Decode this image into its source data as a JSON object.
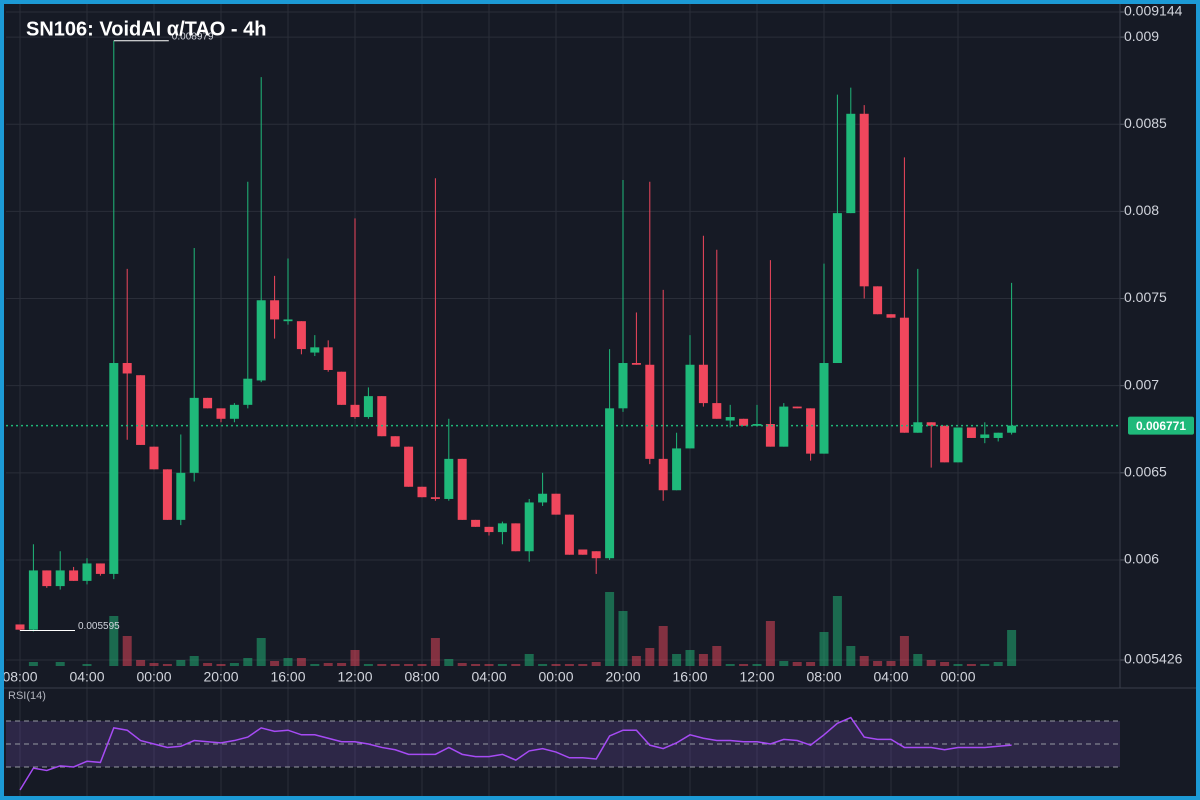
{
  "chart_data": {
    "type": "candlestick",
    "title": "SN106: VoidAI α/TAO - 4h",
    "categories": [
      "08:00",
      null,
      null,
      null,
      null,
      "04:00",
      null,
      null,
      null,
      null,
      "00:00",
      null,
      null,
      null,
      null,
      "20:00",
      null,
      null,
      null,
      null,
      "16:00",
      null,
      null,
      null,
      null,
      "12:00",
      null,
      null,
      null,
      null,
      "08:00",
      null,
      null,
      null,
      null,
      "04:00",
      null,
      null,
      null,
      null,
      "00:00",
      null,
      null,
      null,
      null,
      "20:00",
      null,
      null,
      null,
      null,
      "16:00",
      null,
      null,
      null,
      null,
      "12:00",
      null,
      null,
      null,
      null,
      "08:00",
      null,
      null,
      null,
      null,
      "04:00",
      null,
      null,
      null,
      null,
      "00:00",
      null,
      null,
      null,
      null
    ],
    "open": [
      0.00563,
      0.0056,
      0.00594,
      0.00585,
      0.00594,
      0.00588,
      0.00598,
      0.00592,
      0.00713,
      0.00706,
      0.00665,
      0.00652,
      0.00623,
      0.0065,
      0.00693,
      0.00687,
      0.00681,
      0.00689,
      0.00703,
      0.00749,
      0.00737,
      0.00737,
      0.00719,
      0.00722,
      0.00708,
      0.00689,
      0.00682,
      0.00694,
      0.00671,
      0.00665,
      0.00642,
      0.00636,
      0.00635,
      0.00658,
      0.00623,
      0.00619,
      0.00616,
      0.00621,
      0.00605,
      0.00633,
      0.00638,
      0.00626,
      0.00606,
      0.00605,
      0.00601,
      0.00687,
      0.00713,
      0.00712,
      0.00658,
      0.0064,
      0.00664,
      0.00712,
      0.0069,
      0.0068,
      0.00681,
      0.00677,
      0.00678,
      0.00665,
      0.00688,
      0.00687,
      0.00661,
      0.00713,
      0.00799,
      0.00856,
      0.00757,
      0.00741,
      0.00739,
      0.00673,
      0.00679,
      0.00677,
      0.00656,
      0.00676,
      0.0067,
      0.0067,
      0.00673
    ],
    "high": [
      0.00563,
      0.00609,
      0.00594,
      0.00605,
      0.00596,
      0.00601,
      0.00598,
      0.008979,
      0.00767,
      0.00706,
      0.00665,
      0.00652,
      0.00672,
      0.00779,
      0.00693,
      0.00687,
      0.0069,
      0.00817,
      0.00877,
      0.00763,
      0.00773,
      0.00737,
      0.00729,
      0.00726,
      0.00708,
      0.00796,
      0.00699,
      0.00694,
      0.00671,
      0.00665,
      0.00642,
      0.00819,
      0.00681,
      0.00658,
      0.00623,
      0.00619,
      0.00622,
      0.00621,
      0.00635,
      0.0065,
      0.00638,
      0.00626,
      0.00606,
      0.00605,
      0.00721,
      0.00818,
      0.00742,
      0.00817,
      0.00755,
      0.00673,
      0.00729,
      0.00786,
      0.00778,
      0.00689,
      0.00681,
      0.00689,
      0.00772,
      0.0069,
      0.00688,
      0.00687,
      0.0077,
      0.00867,
      0.00871,
      0.00861,
      0.00757,
      0.00741,
      0.00831,
      0.00767,
      0.00679,
      0.00677,
      0.00676,
      0.00676,
      0.00679,
      0.00673,
      0.00759
    ],
    "low": [
      0.005595,
      0.00559,
      0.00584,
      0.00583,
      0.00588,
      0.00586,
      0.00591,
      0.00589,
      0.00669,
      0.00666,
      0.00652,
      0.00623,
      0.0062,
      0.00645,
      0.00687,
      0.00679,
      0.00679,
      0.00687,
      0.00702,
      0.00727,
      0.00735,
      0.00718,
      0.00717,
      0.00708,
      0.00689,
      0.00681,
      0.00681,
      0.00671,
      0.00665,
      0.00642,
      0.00636,
      0.00634,
      0.00634,
      0.00623,
      0.00619,
      0.00614,
      0.00609,
      0.00605,
      0.00599,
      0.00631,
      0.00626,
      0.00603,
      0.00603,
      0.00592,
      0.006,
      0.00685,
      0.00712,
      0.00655,
      0.00634,
      0.0064,
      0.00664,
      0.00688,
      0.00681,
      0.00676,
      0.00677,
      0.00677,
      0.00665,
      0.00665,
      0.00687,
      0.00657,
      0.00661,
      0.00713,
      0.00799,
      0.0075,
      0.00741,
      0.00739,
      0.00673,
      0.00673,
      0.00653,
      0.00656,
      0.00656,
      0.0067,
      0.00667,
      0.00668,
      0.00672
    ],
    "close": [
      0.0056,
      0.00594,
      0.00585,
      0.00594,
      0.00588,
      0.00598,
      0.00592,
      0.00713,
      0.00707,
      0.00666,
      0.00652,
      0.00623,
      0.0065,
      0.00693,
      0.00687,
      0.00681,
      0.00689,
      0.00704,
      0.00749,
      0.00738,
      0.00738,
      0.00721,
      0.00722,
      0.00709,
      0.00689,
      0.00682,
      0.00694,
      0.00671,
      0.00665,
      0.00642,
      0.00636,
      0.00635,
      0.00658,
      0.00623,
      0.00619,
      0.00616,
      0.00621,
      0.00605,
      0.00633,
      0.00638,
      0.00626,
      0.00603,
      0.00603,
      0.00601,
      0.00687,
      0.00713,
      0.00712,
      0.00658,
      0.0064,
      0.00664,
      0.00712,
      0.0069,
      0.00681,
      0.00682,
      0.00677,
      0.00678,
      0.00665,
      0.00688,
      0.00687,
      0.00661,
      0.00713,
      0.00799,
      0.00856,
      0.00757,
      0.00741,
      0.00739,
      0.00673,
      0.00679,
      0.00677,
      0.00656,
      0.00676,
      0.0067,
      0.00672,
      0.00673,
      0.006771
    ],
    "volume": [
      0,
      4,
      0,
      4,
      0,
      2,
      0,
      50,
      30,
      6,
      3,
      2,
      6,
      10,
      3,
      2,
      3,
      8,
      28,
      5,
      8,
      8,
      2,
      3,
      3,
      16,
      2,
      2,
      2,
      2,
      2,
      28,
      7,
      3,
      2,
      2,
      2,
      2,
      12,
      2,
      2,
      2,
      2,
      4,
      74,
      55,
      10,
      18,
      40,
      12,
      16,
      12,
      20,
      2,
      2,
      2,
      45,
      5,
      4,
      4,
      34,
      70,
      20,
      10,
      5,
      5,
      30,
      12,
      6,
      4,
      2,
      2,
      2,
      4,
      36
    ],
    "ylim": [
      0.005426,
      0.009144
    ],
    "yticks": [
      0.005426,
      0.006,
      0.0065,
      0.007,
      0.0075,
      0.008,
      0.0085,
      0.009,
      0.009144
    ],
    "up_color": "#1fb97a",
    "down_color": "#f0475d",
    "grid": true,
    "annotations": [
      {
        "index": 7,
        "value": 0.008979
      },
      {
        "index": 0,
        "value": 0.005595
      }
    ],
    "rsi": {
      "label": "RSI(14)",
      "color": "#a64bf4",
      "values": [
        10,
        29,
        27,
        31,
        30,
        35,
        34,
        64,
        62,
        53,
        50,
        47,
        48,
        53,
        52,
        51,
        53,
        56,
        64,
        61,
        62,
        58,
        58,
        55,
        52,
        52,
        50,
        47,
        45,
        41,
        41,
        41,
        47,
        41,
        39,
        39,
        41,
        36,
        44,
        46,
        43,
        38,
        38,
        37,
        57,
        62,
        62,
        49,
        46,
        51,
        58,
        55,
        53,
        53,
        52,
        52,
        50,
        54,
        53,
        49,
        58,
        68,
        73,
        56,
        54,
        54,
        47,
        47,
        47,
        45,
        47,
        47,
        47,
        48,
        49
      ],
      "ylim": [
        0,
        100
      ],
      "levels": [
        70,
        50,
        30
      ]
    }
  }
}
